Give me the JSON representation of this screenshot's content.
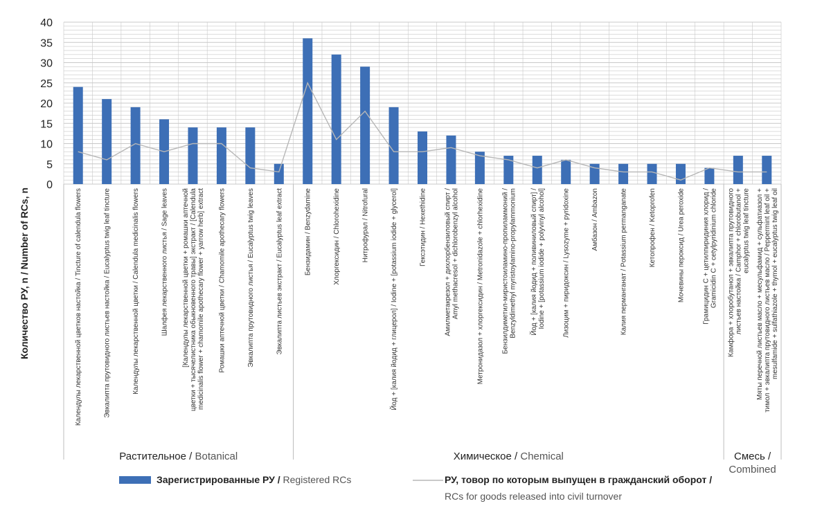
{
  "chart_data": {
    "type": "bar",
    "ylabel": "Количество РУ, n / Number of RCs, n",
    "ylim": [
      0,
      40
    ],
    "yticks": [
      "0",
      "5",
      "10",
      "15",
      "20",
      "25",
      "30",
      "35",
      "40"
    ],
    "grid": true,
    "legend_position": "bottom",
    "colors": {
      "bar": "#3d6fb6",
      "line": "#b7b7b7",
      "grid": "#c8c8c8"
    },
    "categories": [
      [
        "Календулы лекарственной цветков настойка / Tincture of calendula flowers"
      ],
      [
        "Эвкалипта прутовидного листьев настойка / Eucalyptus twig leaf tincture"
      ],
      [
        "Календулы лекарственной цветки / Calendula medicinalis flowers"
      ],
      [
        "Шалфея лекарственного листья / Sage leaves"
      ],
      [
        "[Календулы лекарственной цветки + ромашки аптечной",
        "цветки + тысячелистника обыкновенного травы] экстракт / [Calendula",
        "medicinalis flower + chamomile apothecary flower + yarrow herb] extract"
      ],
      [
        "Ромашки аптечной цветки / Chamomile apothecary flowers"
      ],
      [
        "Эвкалипта прутовидного листья / Eucalyptus twig leaves"
      ],
      [
        "Эвкалипта листьев экстракт / Eucalyptus leaf extract"
      ],
      [
        "Бензидамин / Benzydamine"
      ],
      [
        "Хлоргексидин / Chlorohexidine"
      ],
      [
        "Нитрофурал / Nitrofural"
      ],
      [
        "Йод + [калия йодид + глицерол] / Iodine + [potassium iodide + glycerol]"
      ],
      [
        "Гексэтидин / Hexethidine"
      ],
      [
        "Амилметакрезол + дихлорбензиловый спирт /",
        "Amyl methacresol + dichlorobenzyl alcohol"
      ],
      [
        "Метронидазол + хлоргексидин / Metronidazole + chlorhexidine"
      ],
      [
        "Бензилдиметил-миристоиламино-пропиламмоний /",
        "Benzyldimethyl myristoylamino-propylammonium"
      ],
      [
        "Йод + [калия йодид + поливиниловый спирт] /",
        "Iodine + [potassium iodide + polyvinyl alcohol]"
      ],
      [
        "Лизоцим + пиридоксин / Lysozyme + pyridoxine"
      ],
      [
        "Амбазон / Ambazon"
      ],
      [
        "Калия перманганат / Potassium permanganate"
      ],
      [
        "Кетопрофен / Ketoprofen"
      ],
      [
        "Мочевины пероксид / Urea peroxide"
      ],
      [
        "Грамицидин С + цетилпиридиния хлорид /",
        "Gramicidin C + cetylpyridinium chloride"
      ],
      [
        "Камфора + хлоробутанол + эвкалипта прутовидного",
        "листьев настойка / Camphor + chlorobutanol +",
        "eucalyptus twig leaf tincture"
      ],
      [
        "Мяты перечной листьев масло + месульфамид + сульфатиазол +",
        "тимол + эвкалипта прутовидного листьев масло / Peppermint leaf oil +",
        "mesulfamide + sulfathiazole + thymol + eucalyptus twig leaf oil"
      ]
    ],
    "groups": [
      {
        "label_ru": "Растительное",
        "label_sep": " / ",
        "label_en": "Botanical",
        "start": 0,
        "end": 7
      },
      {
        "label_ru": "Химическое",
        "label_sep": " / ",
        "label_en": "Chemical",
        "start": 8,
        "end": 22
      },
      {
        "label_ru": "Смесь",
        "label_sep": " / ",
        "label_en": "Combined",
        "start": 23,
        "end": 24
      }
    ],
    "series": [
      {
        "type": "bar",
        "name_ru": "Зарегистрированные РУ",
        "name_sep": " / ",
        "name_en": "Registered RCs",
        "values": [
          24,
          21,
          19,
          16,
          14,
          14,
          14,
          5,
          36,
          32,
          29,
          19,
          13,
          12,
          8,
          7,
          7,
          6,
          5,
          5,
          5,
          5,
          4,
          7,
          7
        ]
      },
      {
        "type": "line",
        "name_ru": "РУ, товор по которым выпущен в гражданский оборот",
        "name_sep": " / ",
        "name_en": "RCs for goods released into civil turnover",
        "values": [
          8,
          6,
          10,
          8,
          10,
          10,
          4,
          3,
          25,
          11,
          18,
          8,
          8,
          9,
          7,
          6,
          4,
          6,
          4,
          3,
          3,
          1,
          4,
          3,
          3
        ]
      }
    ]
  }
}
